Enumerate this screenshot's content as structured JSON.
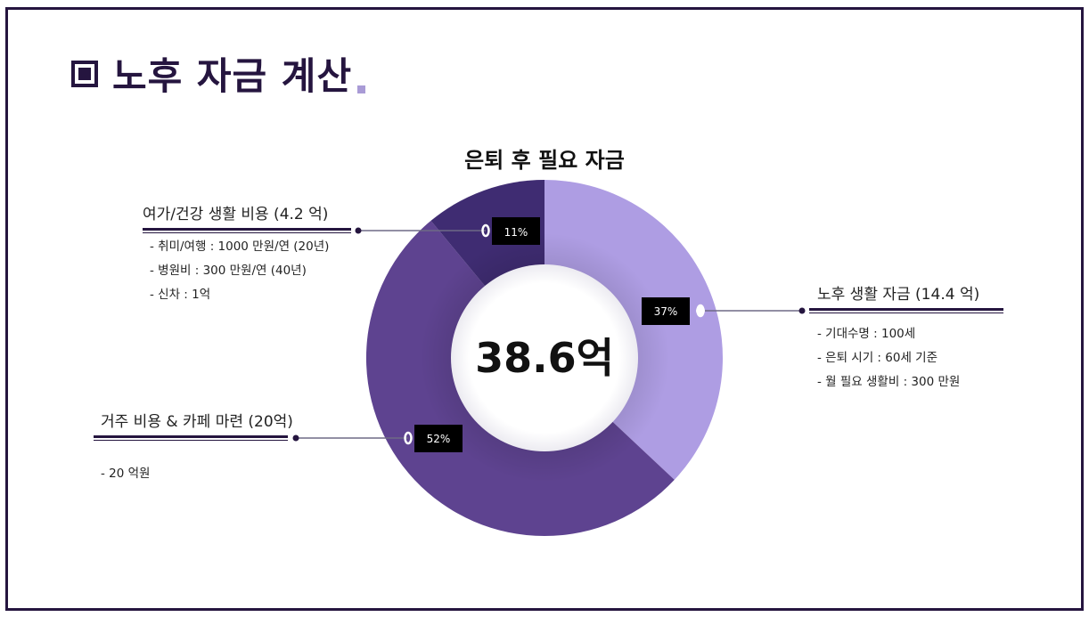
{
  "page": {
    "title": "노후 자금 계산"
  },
  "colors": {
    "accent": "#25153f",
    "slice_retirement": "#ae9de3",
    "slice_housing": "#5e4390",
    "slice_leisure": "#3f2c72",
    "label_bg": "#000000"
  },
  "chart_data": {
    "type": "pie",
    "variant": "donut",
    "title": "은퇴 후 필요 자금",
    "center_label": "38.6억",
    "slices": [
      {
        "label": "노후 생활 자금 (14.4 억)",
        "value": 37,
        "value_label": "37%"
      },
      {
        "label": "거주 비용 & 카페 마련 (20억)",
        "value": 52,
        "value_label": "52%"
      },
      {
        "label": "여가/건강 생활 비용 (4.2 억)",
        "value": 11,
        "value_label": "11%"
      }
    ]
  },
  "callouts": {
    "retirement": {
      "title": "노후 생활 자금 (14.4 억)",
      "items": [
        "기대수명 : 100세",
        "은퇴 시기 : 60세 기준",
        "월 필요 생활비 : 300 만원"
      ]
    },
    "housing": {
      "title": "거주 비용 & 카페 마련 (20억)",
      "items": [
        "20 억원"
      ]
    },
    "leisure": {
      "title": "여가/건강 생활 비용 (4.2 억)",
      "items": [
        "취미/여행 : 1000 만원/연 (20년)",
        "병원비 : 300 만원/연 (40년)",
        "신차 : 1억"
      ]
    }
  }
}
